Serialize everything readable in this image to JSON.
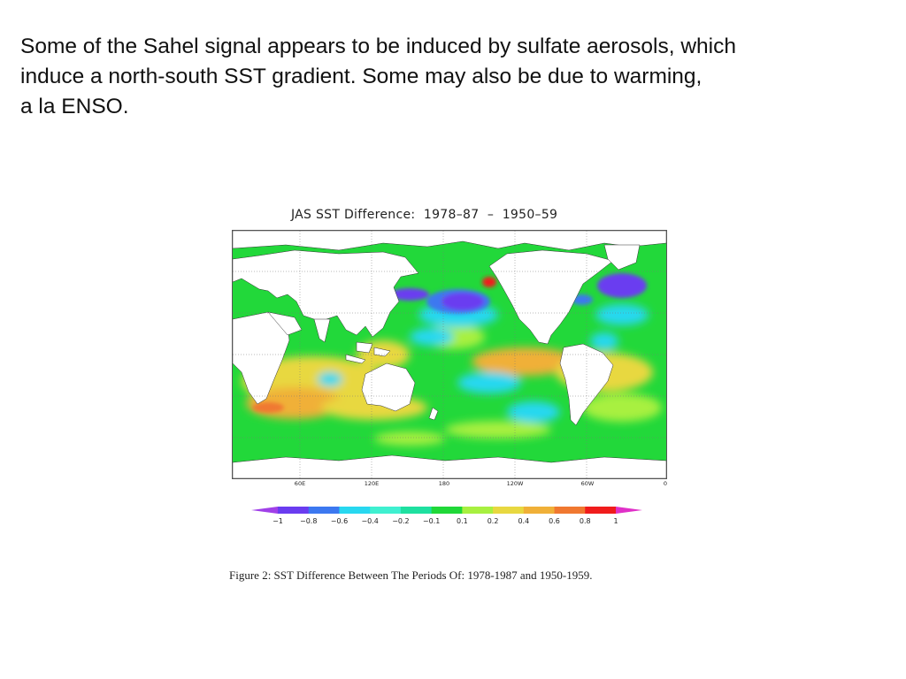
{
  "slide": {
    "text_lines": [
      "Some of the Sahel signal appears to be induced by sulfate aerosols, which",
      "induce a north-south SST gradient.  Some may also be due to warming,",
      "a la ENSO."
    ]
  },
  "figure": {
    "title": "JAS SST Difference:  1978–87  –  1950–59",
    "lon_ticks": [
      "60E",
      "120E",
      "180",
      "120W",
      "60W",
      "0"
    ],
    "caption": "Figure 2: SST Difference Between The Periods Of: 1978-1987 and 1950-1959."
  },
  "colorbar": {
    "levels": [
      "−1",
      "−0.8",
      "−0.6",
      "−0.4",
      "−0.2",
      "−0.1",
      "0.1",
      "0.2",
      "0.4",
      "0.6",
      "0.8",
      "1"
    ],
    "colors": [
      "#a040e8",
      "#6a3cf0",
      "#3c78f0",
      "#28d8f0",
      "#3ff0d0",
      "#1ee0a0",
      "#20d838",
      "#a8f040",
      "#e8d840",
      "#f0b038",
      "#f07830",
      "#f01c1c",
      "#e030c8"
    ]
  }
}
